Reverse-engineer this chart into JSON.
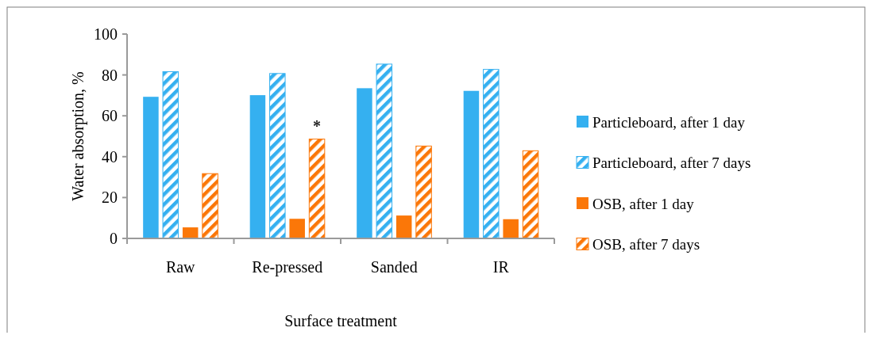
{
  "chart_data": {
    "type": "bar",
    "xlabel": "Surface treatment",
    "ylabel": "Water absorption, %",
    "categories": [
      "Raw",
      "Re-pressed",
      "Sanded",
      "IR"
    ],
    "series": [
      {
        "name": "Particleboard, after 1 day",
        "color": "#35b0f0",
        "values": [
          69.3,
          70.1,
          73.5,
          72.2
        ]
      },
      {
        "name": "Particleboard, after 7 days",
        "color": "#35b0f0",
        "values": [
          81.6,
          80.7,
          85.3,
          82.7
        ]
      },
      {
        "name": "OSB, after 1 day",
        "color": "#fb7708",
        "values": [
          5.4,
          9.6,
          11.2,
          9.4
        ]
      },
      {
        "name": "OSB, after 7 days",
        "color": "#fb7708",
        "values": [
          31.7,
          48.6,
          45.2,
          42.9
        ]
      }
    ],
    "ylim": [
      0,
      100
    ],
    "yticks": [
      0,
      20,
      40,
      60,
      80,
      100
    ],
    "legend": "right",
    "annotations": [
      {
        "text": "*",
        "x": "Re-pressed",
        "y": 55
      }
    ]
  }
}
